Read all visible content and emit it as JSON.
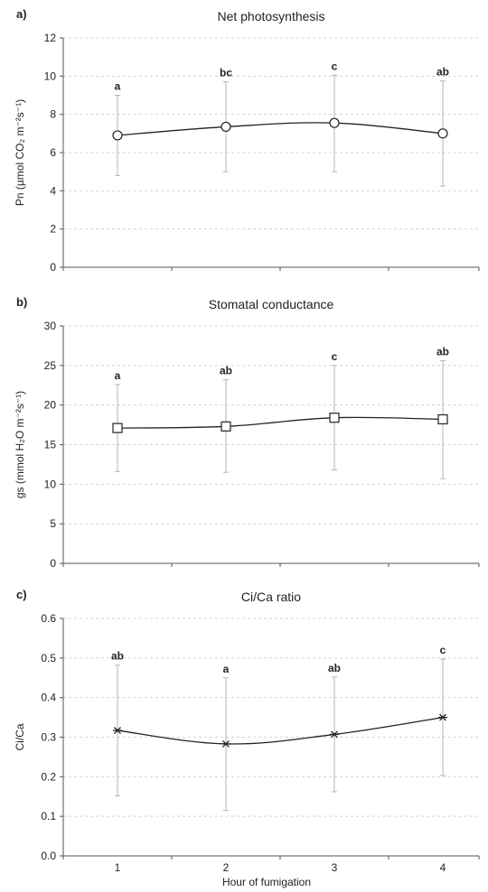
{
  "chart_data": [
    {
      "type": "line",
      "panel_label": "a)",
      "title": "Net photosynthesis",
      "ylabel": "Pn (µmol CO₂ m⁻²s⁻¹)",
      "xlabel": "",
      "categories": [
        "1",
        "2",
        "3",
        "4"
      ],
      "ylim": [
        0,
        12
      ],
      "yticks": [
        "0",
        "2",
        "4",
        "6",
        "8",
        "10",
        "12"
      ],
      "marker": "circle",
      "series": [
        {
          "values": [
            6.9,
            7.35,
            7.55,
            7.0
          ],
          "err_low": [
            4.8,
            5.0,
            5.0,
            4.25
          ],
          "err_high": [
            9.0,
            9.7,
            10.05,
            9.75
          ],
          "labels": [
            "a",
            "bc",
            "c",
            "ab"
          ]
        }
      ]
    },
    {
      "type": "line",
      "panel_label": "b)",
      "title": "Stomatal conductance",
      "ylabel": "gs (mmol H₂O m⁻²s⁻¹)",
      "xlabel": "",
      "categories": [
        "1",
        "2",
        "3",
        "4"
      ],
      "ylim": [
        0,
        30
      ],
      "yticks": [
        "0",
        "5",
        "10",
        "15",
        "20",
        "25",
        "30"
      ],
      "marker": "square",
      "series": [
        {
          "values": [
            17.1,
            17.3,
            18.4,
            18.2
          ],
          "err_low": [
            11.6,
            11.5,
            11.8,
            10.7
          ],
          "err_high": [
            22.6,
            23.2,
            25.0,
            25.6
          ],
          "labels": [
            "a",
            "ab",
            "c",
            "ab"
          ]
        }
      ]
    },
    {
      "type": "line",
      "panel_label": "c)",
      "title": "Ci/Ca ratio",
      "ylabel": "Ci/Ca",
      "xlabel": "Hour of fumigation",
      "categories": [
        "1",
        "2",
        "3",
        "4"
      ],
      "ylim": [
        0,
        0.6
      ],
      "yticks": [
        "0.0",
        "0.1",
        "0.2",
        "0.3",
        "0.4",
        "0.5",
        "0.6"
      ],
      "marker": "star",
      "series": [
        {
          "values": [
            0.317,
            0.283,
            0.307,
            0.35
          ],
          "err_low": [
            0.152,
            0.115,
            0.162,
            0.203
          ],
          "err_high": [
            0.482,
            0.45,
            0.452,
            0.497
          ],
          "labels": [
            "ab",
            "a",
            "ab",
            "c"
          ]
        }
      ]
    }
  ]
}
